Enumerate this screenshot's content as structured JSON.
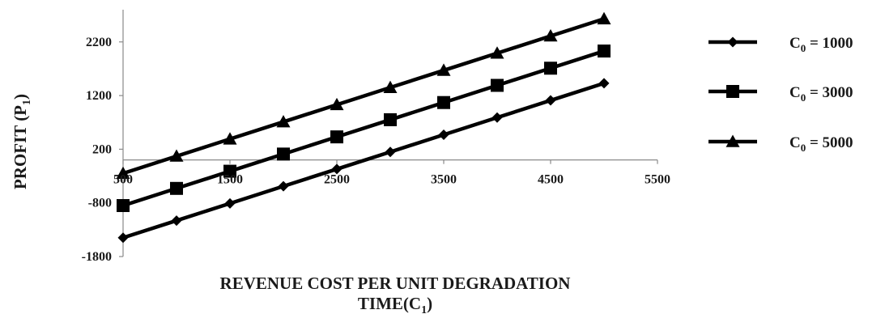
{
  "chart_data": {
    "type": "line",
    "title": "",
    "xlabel_line1": "REVENUE COST PER UNIT DEGRADATION",
    "xlabel_line2": "TIME(C",
    "xlabel_sub": "1",
    "xlabel_end": ")",
    "ylabel": "PROFIT (P",
    "ylabel_sub": "1",
    "ylabel_end": ")",
    "xlim": [
      500,
      5500
    ],
    "ylim": [
      -1800,
      2800
    ],
    "x_ticks": [
      "500",
      "1500",
      "2500",
      "3500",
      "4500",
      "5500"
    ],
    "y_ticks": [
      "2200",
      "1200",
      "200",
      "-800",
      "-1800"
    ],
    "legend_position": "right",
    "x": [
      500,
      1000,
      1500,
      2000,
      2500,
      3000,
      3500,
      4000,
      4500,
      5000
    ],
    "series": [
      {
        "prefix": "C",
        "sub": "0",
        "suffix": "= 1000",
        "marker": "diamond",
        "values": [
          -1450,
          -1130,
          -810,
          -490,
          -170,
          150,
          470,
          790,
          1110,
          1430
        ]
      },
      {
        "prefix": "C",
        "sub": "0",
        "suffix": "= 3000",
        "marker": "square",
        "values": [
          -850,
          -530,
          -210,
          110,
          430,
          750,
          1070,
          1390,
          1710,
          2030
        ]
      },
      {
        "prefix": "C",
        "sub": "0",
        "suffix": "= 5000",
        "marker": "triangle",
        "values": [
          -250,
          70,
          390,
          710,
          1030,
          1350,
          1670,
          1990,
          2310,
          2630
        ]
      }
    ],
    "line_color": "#000000"
  }
}
